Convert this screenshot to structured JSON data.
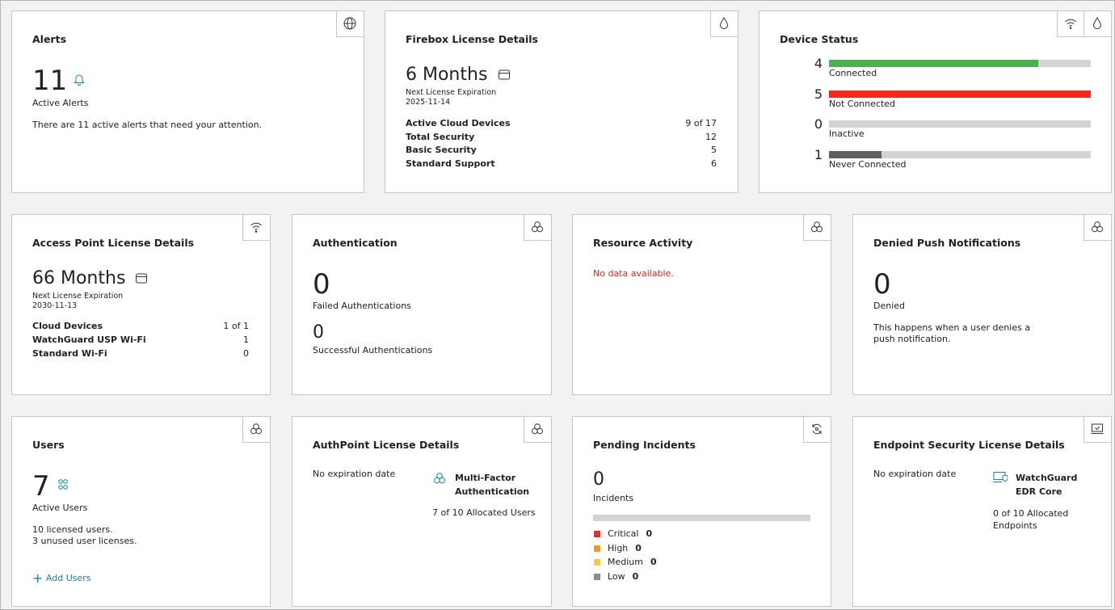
{
  "alerts": {
    "title": "Alerts",
    "count": 11,
    "count_label": "Active Alerts",
    "message": "There are 11 active alerts that need your attention."
  },
  "firebox_license": {
    "title": "Firebox License Details",
    "duration": "6 Months",
    "expiration_label": "Next License Expiration",
    "expiration_date": "2025-11-14",
    "rows": [
      [
        "Active Cloud Devices",
        "9 of 17"
      ],
      [
        "Total Security",
        "12"
      ],
      [
        "Basic Security",
        "5"
      ],
      [
        "Standard Support",
        "6"
      ]
    ]
  },
  "device_status": {
    "title": "Device Status",
    "items": [
      {
        "label": "Connected",
        "count": 4,
        "color": "#4caf50"
      },
      {
        "label": "Not Connected",
        "count": 5,
        "color": "#f5281e"
      },
      {
        "label": "Inactive",
        "count": 0,
        "color": "#9e9e9e"
      },
      {
        "label": "Never Connected",
        "count": 1,
        "color": "#5f5f5f"
      }
    ]
  },
  "access_point_license": {
    "title": "Access Point License Details",
    "duration": "66 Months",
    "expiration_label": "Next License Expiration",
    "expiration_date": "2030-11-13",
    "rows": [
      [
        "Cloud Devices",
        "1 of 1"
      ],
      [
        "WatchGuard USP Wi-Fi",
        "1"
      ],
      [
        "Standard Wi-Fi",
        "0"
      ]
    ]
  },
  "authentication": {
    "title": "Authentication",
    "failed": 0,
    "failed_label": "Failed Authentications",
    "successful": 0,
    "successful_label": "Successful Authentications"
  },
  "resource_activity": {
    "title": "Resource Activity",
    "message": "No data available."
  },
  "denied_push": {
    "title": "Denied Push Notifications",
    "count": 0,
    "count_label": "Denied",
    "message": "This happens when a user denies a push notification."
  },
  "users": {
    "title": "Users",
    "count": 7,
    "count_label": "Active Users",
    "licensed": "10 licensed users.",
    "unused": "3 unused user licenses.",
    "action": "Add Users"
  },
  "authpoint_license": {
    "title": "AuthPoint License Details",
    "expiration": "No expiration date",
    "product": "Multi-Factor Authentication",
    "allocation": "7 of 10 Allocated Users"
  },
  "pending_incidents": {
    "title": "Pending Incidents",
    "count": 0,
    "count_label": "Incidents",
    "levels": [
      {
        "label": "Critical",
        "count": 0,
        "color": "#f5281e"
      },
      {
        "label": "High",
        "count": 0,
        "color": "#f39a1e"
      },
      {
        "label": "Medium",
        "count": 0,
        "color": "#f5c842"
      },
      {
        "label": "Low",
        "count": 0,
        "color": "#8c8c8c"
      }
    ]
  },
  "endpoint_license": {
    "title": "Endpoint Security License Details",
    "expiration": "No expiration date",
    "product": "WatchGuard EDR Core",
    "allocation": "0 of 10 Allocated Endpoints"
  }
}
